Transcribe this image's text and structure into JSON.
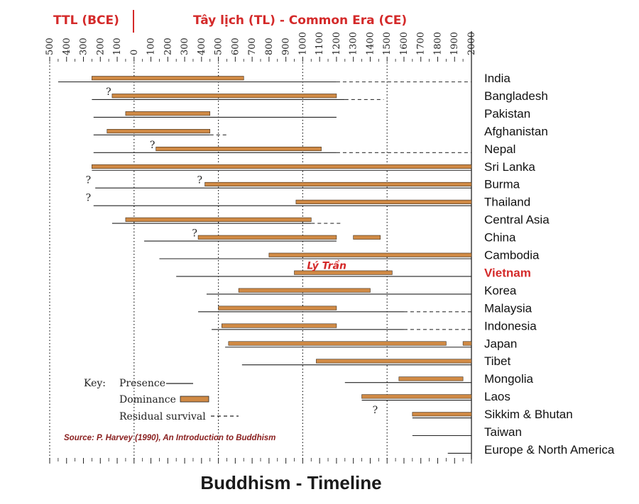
{
  "chart_data": {
    "type": "timeline",
    "title": "Buddhism - Timeline",
    "era_labels": [
      "TTL (BCE)",
      "Tây lịch (TL) - Common Era (CE)"
    ],
    "source": "Source: P. Harvey (1990), An Introduction to Buddhism",
    "xlim": [
      -500,
      2000
    ],
    "ticks": [
      -500,
      -400,
      -300,
      -200,
      -100,
      0,
      100,
      200,
      300,
      400,
      500,
      600,
      700,
      800,
      900,
      1000,
      1100,
      1200,
      1300,
      1400,
      1500,
      1600,
      1700,
      1800,
      1900,
      2000
    ],
    "tick_labels": [
      "500",
      "400",
      "300",
      "200",
      "100",
      "0",
      "100",
      "200",
      "300",
      "400",
      "500",
      "600",
      "700",
      "800",
      "900",
      "1000",
      "1100",
      "1200",
      "1300",
      "1400",
      "1500",
      "1600",
      "1700",
      "1800",
      "1900",
      "2000"
    ],
    "key": {
      "label": "Key:",
      "presence": "Presence",
      "dominance": "Dominance",
      "residual": "Residual survival"
    },
    "colors": {
      "dominance": "#d08a45",
      "line": "#222222",
      "highlight": "#d42a2a"
    },
    "rows": [
      {
        "country": "India",
        "presence": [
          [
            -450,
            1200
          ]
        ],
        "dominance": [
          [
            -250,
            650
          ]
        ],
        "residual": [
          [
            1200,
            2000
          ]
        ]
      },
      {
        "country": "Bangladesh",
        "presence": [
          [
            -250,
            1250
          ]
        ],
        "dominance": [
          [
            -130,
            1200
          ]
        ],
        "residual": [
          [
            1250,
            1480
          ]
        ],
        "uncertain": [
          -150
        ]
      },
      {
        "country": "Pakistan",
        "presence": [
          [
            -240,
            1200
          ]
        ],
        "dominance": [
          [
            -50,
            450
          ]
        ]
      },
      {
        "country": "Afghanistan",
        "presence": [
          [
            -240,
            450
          ]
        ],
        "dominance": [
          [
            -160,
            450
          ]
        ],
        "residual": [
          [
            450,
            560
          ]
        ]
      },
      {
        "country": "Nepal",
        "presence": [
          [
            -240,
            1200
          ]
        ],
        "dominance": [
          [
            130,
            1110
          ]
        ],
        "residual": [
          [
            1200,
            2000
          ]
        ],
        "uncertain": [
          110
        ]
      },
      {
        "country": "Sri Lanka",
        "presence": [
          [
            -250,
            2000
          ]
        ],
        "dominance": [
          [
            -250,
            2000
          ]
        ]
      },
      {
        "country": "Burma",
        "presence": [
          [
            -230,
            2000
          ]
        ],
        "dominance": [
          [
            420,
            2000
          ]
        ],
        "uncertain": [
          -270,
          390
        ]
      },
      {
        "country": "Thailand",
        "presence": [
          [
            -240,
            2000
          ]
        ],
        "dominance": [
          [
            960,
            2000
          ]
        ],
        "uncertain": [
          -270
        ]
      },
      {
        "country": "Central Asia",
        "presence": [
          [
            -130,
            1050
          ]
        ],
        "dominance": [
          [
            -50,
            1050
          ]
        ],
        "residual": [
          [
            1050,
            1230
          ]
        ]
      },
      {
        "country": "China",
        "presence": [
          [
            60,
            1200
          ]
        ],
        "dominance": [
          [
            380,
            1200
          ],
          [
            1300,
            1460
          ]
        ],
        "uncertain": [
          360
        ]
      },
      {
        "country": "Cambodia",
        "presence": [
          [
            150,
            2000
          ]
        ],
        "dominance": [
          [
            800,
            2000
          ]
        ]
      },
      {
        "country": "Vietnam",
        "presence": [
          [
            250,
            2000
          ]
        ],
        "dominance": [
          [
            950,
            1530
          ]
        ],
        "annotation": "Lý   Trần",
        "highlight": true
      },
      {
        "country": "Korea",
        "presence": [
          [
            430,
            2000
          ]
        ],
        "dominance": [
          [
            620,
            1400
          ]
        ]
      },
      {
        "country": "Malaysia",
        "presence": [
          [
            380,
            1600
          ]
        ],
        "dominance": [
          [
            500,
            1200
          ]
        ],
        "residual": [
          [
            1600,
            2000
          ]
        ]
      },
      {
        "country": "Indonesia",
        "presence": [
          [
            460,
            1600
          ]
        ],
        "dominance": [
          [
            520,
            1200
          ]
        ],
        "residual": [
          [
            1600,
            2000
          ]
        ]
      },
      {
        "country": "Japan",
        "presence": [
          [
            540,
            2000
          ]
        ],
        "dominance": [
          [
            560,
            1850
          ],
          [
            1950,
            2000
          ]
        ]
      },
      {
        "country": "Tibet",
        "presence": [
          [
            640,
            2000
          ]
        ],
        "dominance": [
          [
            1080,
            2000
          ]
        ]
      },
      {
        "country": "Mongolia",
        "presence": [
          [
            1250,
            2000
          ]
        ],
        "dominance": [
          [
            1570,
            1950
          ]
        ]
      },
      {
        "country": "Laos",
        "presence": [
          [
            1350,
            2000
          ]
        ],
        "dominance": [
          [
            1350,
            2000
          ]
        ]
      },
      {
        "country": "Sikkim & Bhutan",
        "presence": [
          [
            1650,
            2000
          ]
        ],
        "dominance": [
          [
            1650,
            2000
          ]
        ],
        "uncertain": [
          1430
        ]
      },
      {
        "country": "Taiwan",
        "presence": [
          [
            1650,
            2000
          ]
        ]
      },
      {
        "country": "Europe & North America",
        "presence": [
          [
            1860,
            2000
          ]
        ]
      }
    ]
  }
}
